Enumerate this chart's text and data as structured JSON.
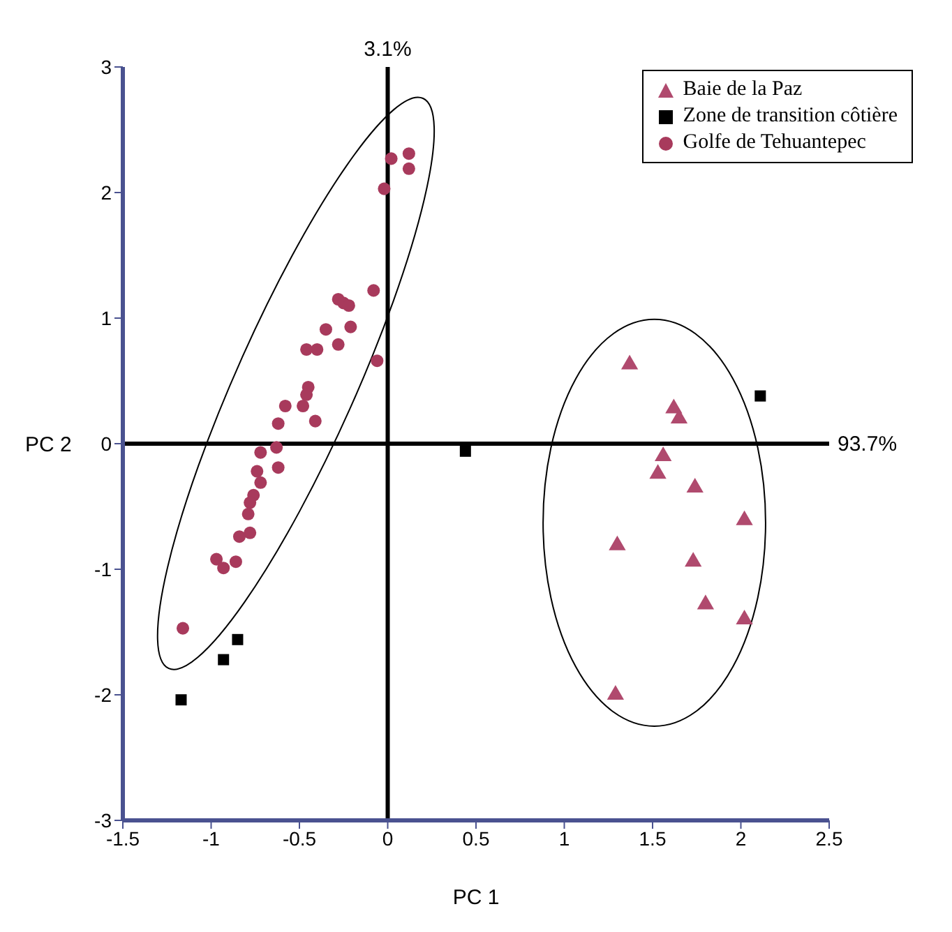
{
  "chart_data": {
    "type": "scatter",
    "xlabel": "PC 1",
    "ylabel": "PC 2",
    "xlim": [
      -1.5,
      2.5
    ],
    "xticks": [
      -1.5,
      -1,
      -0.5,
      0,
      0.5,
      1,
      1.5,
      2,
      2.5
    ],
    "ylim": [
      -3,
      3
    ],
    "yticks": [
      -3,
      -2,
      -1,
      0,
      1,
      2,
      3
    ],
    "grid": false,
    "legend": "top right",
    "ref_lines": [
      {
        "axis": "x",
        "value": 0,
        "color": "#000000"
      },
      {
        "axis": "y",
        "value": 0,
        "color": "#000000"
      }
    ],
    "annotations": [
      "3.1%",
      "93.7%"
    ],
    "series": [
      {
        "name": "Baie de la Paz",
        "color": "#b04a6e",
        "marker": "triangle",
        "x": [
          1.37,
          1.62,
          1.65,
          1.56,
          1.53,
          1.74,
          2.02,
          1.3,
          1.73,
          1.8,
          2.02,
          1.29
        ],
        "values": [
          0.63,
          0.28,
          0.2,
          -0.1,
          -0.24,
          -0.35,
          -0.61,
          -0.81,
          -0.94,
          -1.28,
          -1.4,
          -2.0
        ]
      },
      {
        "name": "Zone de transition côtière",
        "color": "#000000",
        "marker": "square",
        "x": [
          -0.85,
          -0.93,
          -1.17,
          0.44,
          2.11
        ],
        "values": [
          -1.56,
          -1.72,
          -2.04,
          -0.06,
          0.38
        ]
      },
      {
        "name": "Golfe de Tehuantepec",
        "color": "#a83a5c",
        "marker": "circle",
        "x": [
          0.02,
          0.12,
          0.12,
          -0.02,
          -0.08,
          -0.28,
          -0.25,
          -0.22,
          -0.21,
          -0.35,
          -0.28,
          -0.46,
          -0.4,
          -0.06,
          -0.45,
          -0.46,
          -0.48,
          -0.58,
          -0.62,
          -0.41,
          -0.72,
          -0.63,
          -0.62,
          -0.74,
          -0.72,
          -0.76,
          -0.78,
          -0.79,
          -0.78,
          -0.84,
          -0.97,
          -0.93,
          -0.86,
          -1.16
        ],
        "values": [
          2.27,
          2.31,
          2.19,
          2.03,
          1.22,
          1.15,
          1.12,
          1.1,
          0.93,
          0.91,
          0.79,
          0.75,
          0.75,
          0.66,
          0.45,
          0.39,
          0.3,
          0.3,
          0.16,
          0.18,
          -0.07,
          -0.03,
          -0.19,
          -0.22,
          -0.31,
          -0.41,
          -0.47,
          -0.56,
          -0.71,
          -0.74,
          -0.92,
          -0.99,
          -0.94,
          -1.47
        ]
      }
    ]
  }
}
